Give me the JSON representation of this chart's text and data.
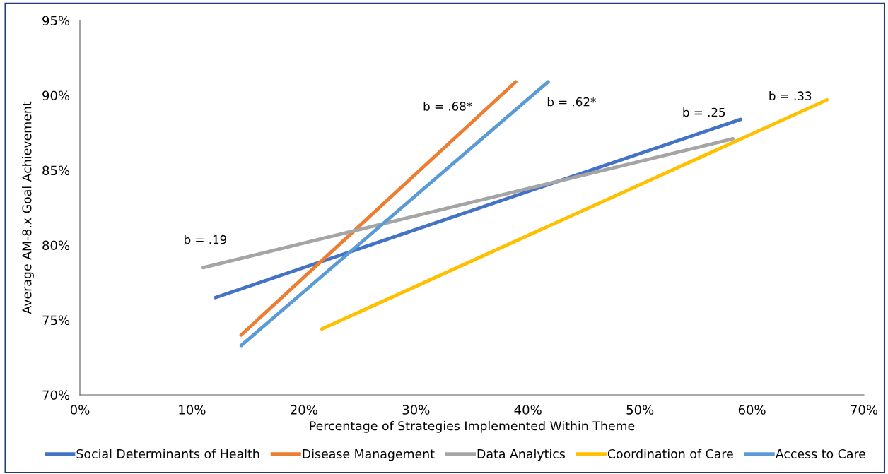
{
  "chart_data": {
    "type": "line",
    "xlabel": "Percentage of Strategies Implemented Within Theme",
    "ylabel": "Average AM-8.x Goal Achievement",
    "series": [
      {
        "name": "Social Determinants of Health",
        "color": "#4472c4",
        "x": [
          12.1,
          59.0
        ],
        "values": [
          76.5,
          88.4
        ]
      },
      {
        "name": "Disease Management",
        "color": "#ed7d31",
        "x": [
          14.4,
          38.9
        ],
        "values": [
          74.0,
          90.9
        ]
      },
      {
        "name": "Data Analytics",
        "color": "#a5a5a5",
        "x": [
          11.0,
          58.3
        ],
        "values": [
          78.5,
          87.1
        ]
      },
      {
        "name": "Coordination of Care",
        "color": "#ffc000",
        "x": [
          21.6,
          66.7
        ],
        "values": [
          74.4,
          89.7
        ]
      },
      {
        "name": "Access to Care",
        "color": "#5b9bd5",
        "x": [
          14.4,
          41.8
        ],
        "values": [
          73.3,
          90.9
        ]
      }
    ],
    "annotations": [
      "b = .19",
      "b = .68*",
      "b = .62*",
      "b = .25",
      "b = .33"
    ],
    "xlim": [
      0,
      70
    ],
    "xticks": [
      {
        "value": 0,
        "label": "0%"
      },
      {
        "value": 10,
        "label": "10%"
      },
      {
        "value": 20,
        "label": "20%"
      },
      {
        "value": 30,
        "label": "30%"
      },
      {
        "value": 40,
        "label": "40%"
      },
      {
        "value": 50,
        "label": "50%"
      },
      {
        "value": 60,
        "label": "60%"
      },
      {
        "value": 70,
        "label": "70%"
      }
    ],
    "ylim": [
      70,
      95
    ],
    "yticks": [
      {
        "value": 70,
        "label": "70%"
      },
      {
        "value": 75,
        "label": "75%"
      },
      {
        "value": 80,
        "label": "80%"
      },
      {
        "value": 85,
        "label": "85%"
      },
      {
        "value": 90,
        "label": "90%"
      },
      {
        "value": 95,
        "label": "95%"
      }
    ],
    "grid": false,
    "legend": "bottom",
    "marker": "none",
    "line_style": "solid"
  }
}
